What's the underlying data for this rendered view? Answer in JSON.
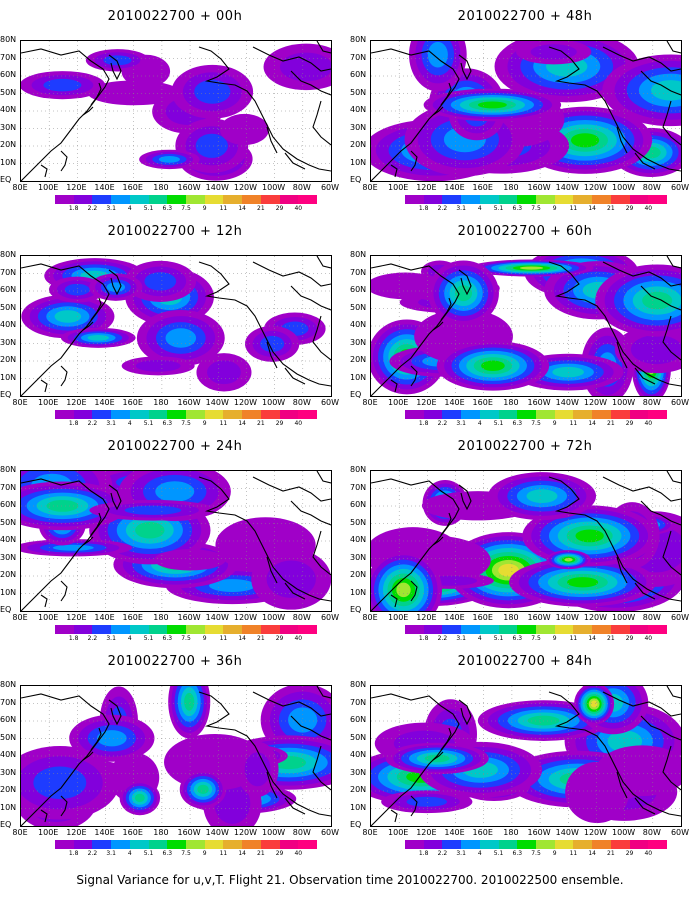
{
  "panels": [
    {
      "title": "2010022700 + 00h",
      "intensity": 0.18,
      "fill": 0.3
    },
    {
      "title": "2010022700 + 12h",
      "intensity": 0.22,
      "fill": 0.35
    },
    {
      "title": "2010022700 + 24h",
      "intensity": 0.32,
      "fill": 0.65
    },
    {
      "title": "2010022700 + 36h",
      "intensity": 0.38,
      "fill": 0.75
    },
    {
      "title": "2010022700 + 48h",
      "intensity": 0.42,
      "fill": 0.8
    },
    {
      "title": "2010022700 + 60h",
      "intensity": 0.55,
      "fill": 0.85
    },
    {
      "title": "2010022700 + 72h",
      "intensity": 0.62,
      "fill": 0.88
    },
    {
      "title": "2010022700 + 84h",
      "intensity": 0.7,
      "fill": 0.9
    }
  ],
  "lat_labels": [
    "80N",
    "70N",
    "60N",
    "50N",
    "40N",
    "30N",
    "20N",
    "10N",
    "EQ"
  ],
  "lon_labels": [
    "80E",
    "100E",
    "120E",
    "140E",
    "160E",
    "180",
    "160W",
    "140W",
    "120W",
    "100W",
    "80W",
    "60W"
  ],
  "colorbar": {
    "labels": [
      "1.8",
      "2.2",
      "3.1",
      "4",
      "5.1",
      "6.3",
      "7.5",
      "9",
      "11",
      "14",
      "21",
      "29",
      "40"
    ],
    "colors": [
      "#a000c8",
      "#8200dc",
      "#1e3cff",
      "#0096ff",
      "#00c8c8",
      "#00d28c",
      "#00dc00",
      "#a0e632",
      "#e6dc32",
      "#e6af2d",
      "#f08228",
      "#fa3c3c",
      "#f00082"
    ]
  },
  "footer": "Signal Variance for u,v,T. Flight 21. Observation time 2010022700. 2010022500 ensemble."
}
